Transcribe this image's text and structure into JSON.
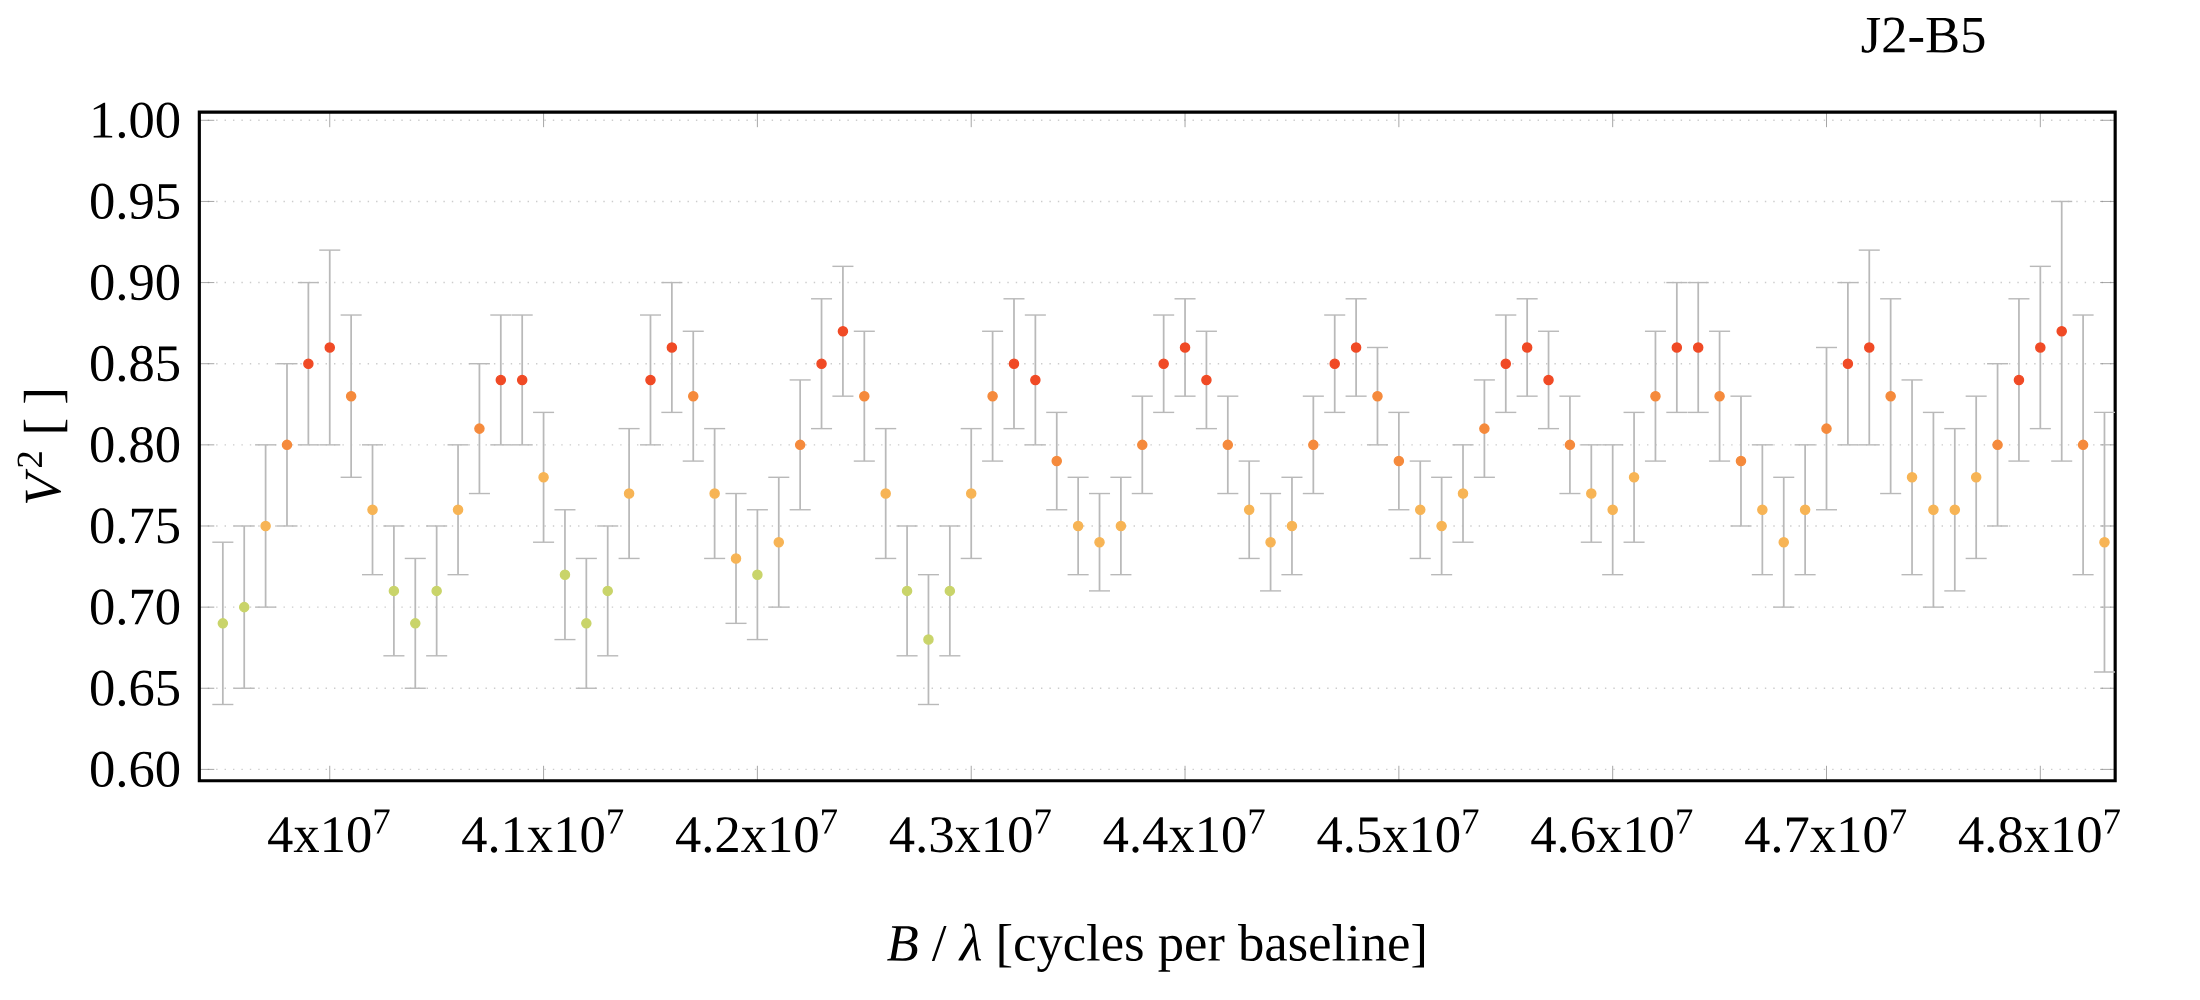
{
  "chart_data": {
    "type": "scatter",
    "title": "J2-B5",
    "xlabel": "*B* / *λ* [cycles per baseline]",
    "ylabel": "*V*$^{2}$ [ ]",
    "x": [
      39500000,
      39600000,
      39700000,
      39800000,
      39900000,
      40000000,
      40100000,
      40200000,
      40300000,
      40400000,
      40500000,
      40600000,
      40700000,
      40800000,
      40900000,
      41000000,
      41100000,
      41200000,
      41300000,
      41400000,
      41500000,
      41600000,
      41700000,
      41800000,
      41900000,
      42000000,
      42100000,
      42200000,
      42300000,
      42400000,
      42500000,
      42600000,
      42700000,
      42800000,
      42900000,
      43000000,
      43100000,
      43200000,
      43300000,
      43400000,
      43500000,
      43600000,
      43700000,
      43800000,
      43900000,
      44000000,
      44100000,
      44200000,
      44300000,
      44400000,
      44500000,
      44600000,
      44700000,
      44800000,
      44900000,
      45000000,
      45100000,
      45200000,
      45300000,
      45400000,
      45500000,
      45600000,
      45700000,
      45800000,
      45900000,
      46000000,
      46100000,
      46200000,
      46300000,
      46400000,
      46500000,
      46600000,
      46700000,
      46800000,
      46900000,
      47000000,
      47100000,
      47200000,
      47300000,
      47400000,
      47500000,
      47600000,
      47700000,
      47800000,
      47900000,
      48000000,
      48100000,
      48200000,
      48300000
    ],
    "values": [
      0.69,
      0.7,
      0.75,
      0.8,
      0.85,
      0.86,
      0.83,
      0.76,
      0.71,
      0.69,
      0.71,
      0.76,
      0.81,
      0.84,
      0.84,
      0.78,
      0.72,
      0.69,
      0.71,
      0.77,
      0.84,
      0.86,
      0.83,
      0.77,
      0.73,
      0.72,
      0.74,
      0.8,
      0.85,
      0.87,
      0.83,
      0.77,
      0.71,
      0.68,
      0.71,
      0.77,
      0.83,
      0.85,
      0.84,
      0.79,
      0.75,
      0.74,
      0.75,
      0.8,
      0.85,
      0.86,
      0.84,
      0.8,
      0.76,
      0.74,
      0.75,
      0.8,
      0.85,
      0.86,
      0.83,
      0.79,
      0.76,
      0.75,
      0.77,
      0.81,
      0.85,
      0.86,
      0.84,
      0.8,
      0.77,
      0.76,
      0.78,
      0.83,
      0.86,
      0.86,
      0.83,
      0.79,
      0.76,
      0.74,
      0.76,
      0.81,
      0.85,
      0.86,
      0.83,
      0.78,
      0.76,
      0.76,
      0.78,
      0.8,
      0.84,
      0.86,
      0.87,
      0.8,
      0.74
    ],
    "errors": [
      0.05,
      0.05,
      0.05,
      0.05,
      0.05,
      0.06,
      0.05,
      0.04,
      0.04,
      0.04,
      0.04,
      0.04,
      0.04,
      0.04,
      0.04,
      0.04,
      0.04,
      0.04,
      0.04,
      0.04,
      0.04,
      0.04,
      0.04,
      0.04,
      0.04,
      0.04,
      0.04,
      0.04,
      0.04,
      0.04,
      0.04,
      0.04,
      0.04,
      0.04,
      0.04,
      0.04,
      0.04,
      0.04,
      0.04,
      0.03,
      0.03,
      0.03,
      0.03,
      0.03,
      0.03,
      0.03,
      0.03,
      0.03,
      0.03,
      0.03,
      0.03,
      0.03,
      0.03,
      0.03,
      0.03,
      0.03,
      0.03,
      0.03,
      0.03,
      0.03,
      0.03,
      0.03,
      0.03,
      0.03,
      0.03,
      0.04,
      0.04,
      0.04,
      0.04,
      0.04,
      0.04,
      0.04,
      0.04,
      0.04,
      0.04,
      0.05,
      0.05,
      0.06,
      0.06,
      0.06,
      0.06,
      0.05,
      0.05,
      0.05,
      0.05,
      0.05,
      0.08,
      0.08,
      0.08
    ],
    "colors": [
      "#c9d46a",
      "#c9d46a",
      "#f7b455",
      "#f58a3c",
      "#f04a25",
      "#f04a25",
      "#f58a3c",
      "#f7b455",
      "#c9d46a",
      "#c9d46a",
      "#c9d46a",
      "#f7b455",
      "#f58a3c",
      "#f04a25",
      "#f04a25",
      "#f7b455",
      "#c9d46a",
      "#c9d46a",
      "#c9d46a",
      "#f7b455",
      "#f04a25",
      "#f04a25",
      "#f58a3c",
      "#f7b455",
      "#f7b455",
      "#c9d46a",
      "#f7b455",
      "#f58a3c",
      "#f04a25",
      "#f04a25",
      "#f58a3c",
      "#f7b455",
      "#c9d46a",
      "#c9d46a",
      "#c9d46a",
      "#f7b455",
      "#f58a3c",
      "#f04a25",
      "#f04a25",
      "#f58a3c",
      "#f7b455",
      "#f7b455",
      "#f7b455",
      "#f58a3c",
      "#f04a25",
      "#f04a25",
      "#f04a25",
      "#f58a3c",
      "#f7b455",
      "#f7b455",
      "#f7b455",
      "#f58a3c",
      "#f04a25",
      "#f04a25",
      "#f58a3c",
      "#f58a3c",
      "#f7b455",
      "#f7b455",
      "#f7b455",
      "#f58a3c",
      "#f04a25",
      "#f04a25",
      "#f04a25",
      "#f58a3c",
      "#f7b455",
      "#f7b455",
      "#f7b455",
      "#f58a3c",
      "#f04a25",
      "#f04a25",
      "#f58a3c",
      "#f58a3c",
      "#f7b455",
      "#f7b455",
      "#f7b455",
      "#f58a3c",
      "#f04a25",
      "#f04a25",
      "#f58a3c",
      "#f7b455",
      "#f7b455",
      "#f7b455",
      "#f7b455",
      "#f58a3c",
      "#f04a25",
      "#f04a25",
      "#f04a25",
      "#f58a3c",
      "#f7b455"
    ],
    "xlim": [
      39390000,
      48350000
    ],
    "ylim": [
      0.593,
      1.005
    ],
    "xticks": [
      {
        "value": 40000000,
        "label": "4x10$^{7}$"
      },
      {
        "value": 41000000,
        "label": "4.1x10$^{7}$"
      },
      {
        "value": 42000000,
        "label": "4.2x10$^{7}$"
      },
      {
        "value": 43000000,
        "label": "4.3x10$^{7}$"
      },
      {
        "value": 44000000,
        "label": "4.4x10$^{7}$"
      },
      {
        "value": 45000000,
        "label": "4.5x10$^{7}$"
      },
      {
        "value": 46000000,
        "label": "4.6x10$^{7}$"
      },
      {
        "value": 47000000,
        "label": "4.7x10$^{7}$"
      },
      {
        "value": 48000000,
        "label": "4.8x10$^{7}$"
      }
    ],
    "yticks": [
      {
        "value": 0.6,
        "label": "0.60"
      },
      {
        "value": 0.65,
        "label": "0.65"
      },
      {
        "value": 0.7,
        "label": "0.70"
      },
      {
        "value": 0.75,
        "label": "0.75"
      },
      {
        "value": 0.8,
        "label": "0.80"
      },
      {
        "value": 0.85,
        "label": "0.85"
      },
      {
        "value": 0.9,
        "label": "0.90"
      },
      {
        "value": 0.95,
        "label": "0.95"
      },
      {
        "value": 1.0,
        "label": "1.00"
      }
    ],
    "grid": "y"
  }
}
